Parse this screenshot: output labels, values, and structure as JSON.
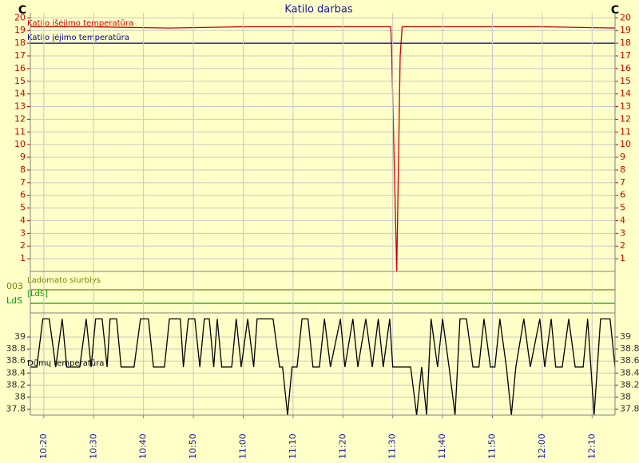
{
  "chart_data": [
    {
      "type": "line",
      "title": "Katilo darbas",
      "y_unit": "C",
      "tick_color": "#cc0000",
      "xlim": [
        617.3,
        734.6
      ],
      "ylim": [
        0,
        20.4
      ],
      "yticks": [
        1,
        2,
        3,
        4,
        5,
        6,
        7,
        8,
        9,
        10,
        11,
        12,
        13,
        14,
        15,
        16,
        17,
        18,
        19,
        20
      ],
      "grid": true,
      "series": [
        {
          "name": "Katilo išėjimo temperatūra",
          "color": "#cc0000",
          "x": [
            617.3,
            630,
            645,
            660,
            675,
            689.6,
            689.8,
            690.8,
            691.5,
            691.9,
            705,
            720,
            734.6
          ],
          "values": [
            19.3,
            19.3,
            19.2,
            19.3,
            19.3,
            19.3,
            17.2,
            0,
            17,
            19.3,
            19.3,
            19.3,
            19.2
          ]
        },
        {
          "name": "Katilo įėjimo temperatūra",
          "color": "#000099",
          "x": [
            617.3,
            734.6
          ],
          "values": [
            18,
            18
          ]
        }
      ]
    },
    {
      "type": "status",
      "series": [
        {
          "name": "Ladomato siurblys",
          "label": "003",
          "color": "#808000"
        },
        {
          "name": "[LdS]",
          "label": "LdS",
          "color": "#00a000"
        }
      ]
    },
    {
      "type": "line",
      "tick_color": "#333333",
      "xlim": [
        617.3,
        734.6
      ],
      "ylim": [
        37.7,
        39.4
      ],
      "yticks": [
        {
          "value": 39,
          "label": "39"
        },
        {
          "value": 38.8,
          "label": "38.8"
        },
        {
          "value": 38.6,
          "label": "38.6"
        },
        {
          "value": 38.4,
          "label": "38.4"
        },
        {
          "value": 38.2,
          "label": "38.2"
        },
        {
          "value": 38,
          "label": "38"
        },
        {
          "value": 37.8,
          "label": "37.8"
        }
      ],
      "xticks": [
        {
          "value": 620,
          "label": "10:20"
        },
        {
          "value": 630,
          "label": "10:30"
        },
        {
          "value": 640,
          "label": "10:40"
        },
        {
          "value": 650,
          "label": "10:50"
        },
        {
          "value": 660,
          "label": "11:00"
        },
        {
          "value": 670,
          "label": "11:10"
        },
        {
          "value": 680,
          "label": "11:20"
        },
        {
          "value": 690,
          "label": "11:30"
        },
        {
          "value": 700,
          "label": "11:40"
        },
        {
          "value": 710,
          "label": "11:50"
        },
        {
          "value": 720,
          "label": "12:00"
        },
        {
          "value": 730,
          "label": "12:10"
        }
      ],
      "grid": true,
      "series": [
        {
          "name": "Dūmų temperatūra",
          "color": "#000000",
          "x": [
            617.3,
            618.6,
            619.8,
            621.1,
            622.4,
            623.7,
            624.6,
            627.2,
            628.5,
            629.5,
            630.4,
            631.7,
            632.7,
            633.3,
            634.6,
            635.5,
            638.1,
            639.4,
            641.0,
            642.0,
            644.2,
            645.2,
            647.4,
            648.0,
            649.0,
            650.3,
            651.3,
            652.2,
            653.2,
            654.1,
            654.8,
            655.7,
            657.7,
            658.6,
            659.6,
            660.9,
            662.1,
            662.8,
            666.0,
            667.3,
            667.9,
            668.9,
            669.8,
            670.8,
            671.8,
            673.0,
            674.0,
            675.3,
            676.3,
            677.5,
            679.5,
            680.4,
            682.0,
            683.0,
            684.6,
            685.9,
            687.1,
            688.1,
            689.4,
            690.0,
            693.6,
            694.8,
            695.8,
            696.8,
            697.7,
            699.0,
            700.0,
            701.3,
            702.5,
            703.5,
            704.8,
            706.1,
            707.3,
            708.3,
            709.6,
            710.5,
            711.5,
            712.8,
            713.8,
            714.7,
            716.3,
            717.6,
            719.5,
            720.5,
            721.8,
            722.7,
            724.0,
            725.3,
            726.6,
            728.2,
            729.1,
            730.4,
            731.7,
            733.6,
            734.6
          ],
          "values": [
            38.5,
            38.5,
            39.3,
            39.3,
            38.5,
            39.3,
            38.5,
            38.5,
            39.3,
            38.5,
            39.3,
            39.3,
            38.5,
            39.3,
            39.3,
            38.5,
            38.5,
            39.3,
            39.3,
            38.5,
            38.5,
            39.3,
            39.3,
            38.5,
            39.3,
            39.3,
            38.5,
            39.3,
            39.3,
            38.5,
            39.3,
            38.5,
            38.5,
            39.3,
            38.5,
            39.3,
            38.5,
            39.3,
            39.3,
            38.5,
            38.5,
            37.7,
            38.5,
            38.5,
            39.3,
            39.3,
            38.5,
            38.5,
            39.3,
            38.5,
            39.3,
            38.5,
            39.3,
            38.5,
            39.3,
            38.5,
            39.3,
            38.5,
            39.3,
            38.5,
            38.5,
            37.7,
            38.5,
            37.7,
            39.3,
            38.5,
            39.3,
            38.5,
            37.7,
            39.3,
            39.3,
            38.5,
            38.5,
            39.3,
            38.5,
            38.5,
            39.3,
            38.5,
            37.7,
            38.5,
            39.3,
            38.5,
            39.3,
            38.5,
            39.3,
            38.5,
            38.5,
            39.3,
            38.5,
            38.5,
            39.3,
            37.7,
            39.3,
            39.3,
            38.5
          ]
        }
      ]
    }
  ]
}
